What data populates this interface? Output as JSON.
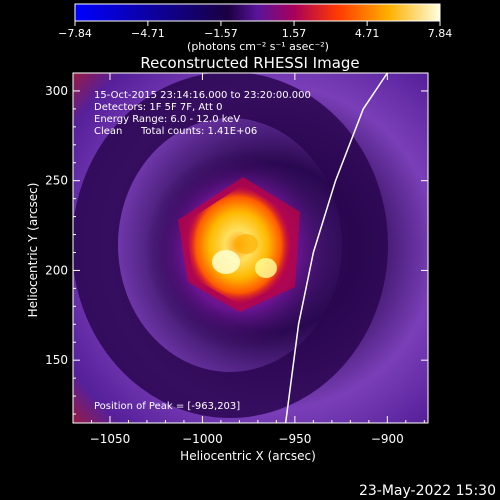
{
  "chart_data": {
    "type": "heatmap",
    "title": "Reconstructed RHESSI Image",
    "xlabel": "Heliocentric X (arcsec)",
    "ylabel": "Heliocentric Y (arcsec)",
    "xlim": [
      -1070,
      -878
    ],
    "ylim": [
      115,
      310
    ],
    "x_ticks": [
      -1050,
      -1000,
      -950,
      -900
    ],
    "y_ticks": [
      150,
      200,
      250,
      300
    ],
    "x_tick_labels": [
      "−1050",
      "−1000",
      "−950",
      "−900"
    ],
    "y_tick_labels": [
      "150",
      "200",
      "250",
      "300"
    ],
    "colorbar": {
      "range": [
        -7.84,
        7.84
      ],
      "tick_values": [
        -7.84,
        -4.71,
        -1.57,
        1.57,
        4.71,
        7.84
      ],
      "tick_labels": [
        "−7.84",
        "−4.71",
        "−1.57",
        "1.57",
        "4.71",
        "7.84"
      ],
      "unit_label": "(photons cm⁻² s⁻¹ asec⁻²)",
      "colormap": [
        "#0000ff",
        "#000000",
        "#6a14a8",
        "#c8003a",
        "#ff6a00",
        "#ffe040",
        "#ffffff"
      ]
    },
    "annotations": [
      "15-Oct-2015 23:14:16.000 to 23:20:00.000",
      "Detectors: 1F 5F 7F, Att 0",
      "Energy Range: 6.0 - 12.0 keV",
      "Clean",
      "Total counts: 1.41E+06"
    ],
    "peak_label": "Position of Peak = [-963,203]",
    "peak": [
      -963,
      203
    ],
    "grid": false,
    "limb_curve": [
      [
        -900,
        310
      ],
      [
        -913,
        290
      ],
      [
        -928,
        250
      ],
      [
        -940,
        210
      ],
      [
        -948,
        170
      ],
      [
        -955,
        115
      ]
    ]
  },
  "timestamp": "23-May-2022 15:30"
}
